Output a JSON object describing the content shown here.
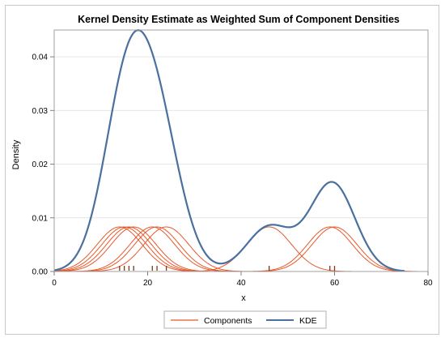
{
  "chart_data": {
    "type": "line",
    "title": "Kernel Density Estimate as Weighted Sum of Component Densities",
    "xlabel": "x",
    "ylabel": "Density",
    "xlim": [
      0,
      80
    ],
    "ylim": [
      0,
      0.045
    ],
    "x_ticks": [
      "0",
      "20",
      "40",
      "60",
      "80"
    ],
    "y_ticks": [
      "0.00",
      "0.01",
      "0.02",
      "0.03",
      "0.04"
    ],
    "grid": "horizontal",
    "legend_position": "bottom",
    "data_points": [
      14,
      15,
      16,
      17,
      21,
      22,
      24,
      46,
      59,
      60
    ],
    "bandwidth": 4.8,
    "series": [
      {
        "name": "Components",
        "color": "#E8582A",
        "kind": "component_kernels"
      },
      {
        "name": "KDE",
        "color": "#4A709E",
        "kind": "sum_of_components"
      }
    ],
    "rug_color": "#7a3a1a"
  }
}
